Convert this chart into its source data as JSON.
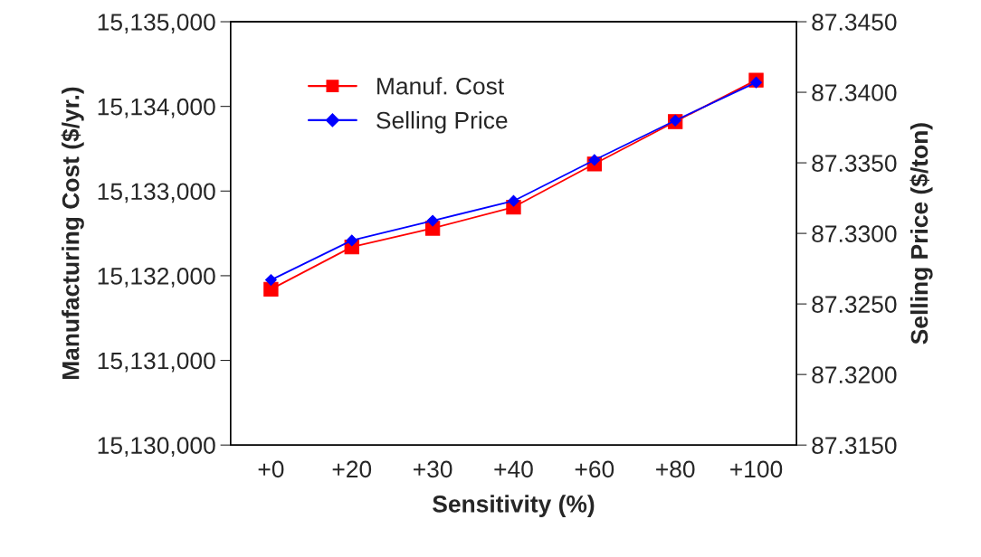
{
  "chart_data": {
    "type": "line",
    "xlabel": "Sensitivity (%)",
    "ylabel": "Manufacturing Cost ($/yr.)",
    "y2label": "Selling Price ($/ton)",
    "categories": [
      "+0",
      "+20",
      "+30",
      "+40",
      "+60",
      "+80",
      "+100"
    ],
    "series": [
      {
        "name": "Manuf. Cost",
        "color": "#ff0000",
        "marker": "square",
        "values": [
          15131840,
          15132340,
          15132560,
          15132810,
          15133320,
          15133820,
          15134310
        ]
      },
      {
        "name": "Selling Price",
        "color": "#0000ff",
        "marker": "diamond",
        "axis": "y2",
        "values": [
          87.3267,
          87.3295,
          87.3309,
          87.3323,
          87.3352,
          87.338,
          87.3407
        ]
      }
    ],
    "ylim": [
      15130000,
      15135000
    ],
    "yticks": [
      {
        "value": 15130000,
        "label": "15,130,000"
      },
      {
        "value": 15131000,
        "label": "15,131,000"
      },
      {
        "value": 15132000,
        "label": "15,132,000"
      },
      {
        "value": 15133000,
        "label": "15,133,000"
      },
      {
        "value": 15134000,
        "label": "15,134,000"
      },
      {
        "value": 15135000,
        "label": "15,135,000"
      }
    ],
    "y2lim": [
      87.315,
      87.345
    ],
    "y2ticks": [
      {
        "value": 87.315,
        "label": "87.3150"
      },
      {
        "value": 87.32,
        "label": "87.3200"
      },
      {
        "value": 87.325,
        "label": "87.3250"
      },
      {
        "value": 87.33,
        "label": "87.3300"
      },
      {
        "value": 87.335,
        "label": "87.3350"
      },
      {
        "value": 87.34,
        "label": "87.3400"
      },
      {
        "value": 87.345,
        "label": "87.3450"
      }
    ],
    "grid": false,
    "legend": "top left",
    "line_style": "solid"
  }
}
